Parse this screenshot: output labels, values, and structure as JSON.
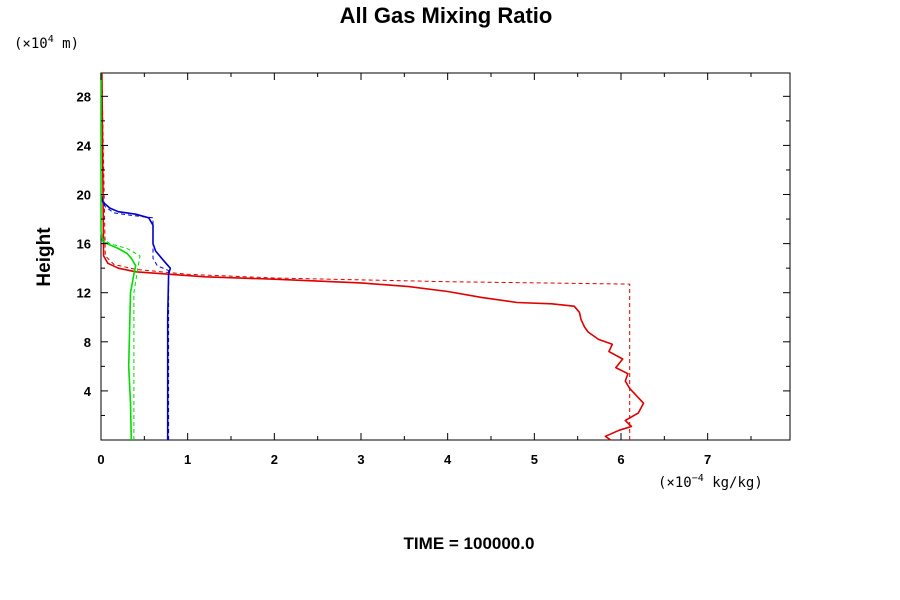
{
  "chart_data": {
    "type": "line",
    "title": "All Gas Mixing Ratio",
    "ylabel": "Height",
    "y_unit_prefix": "(×10",
    "y_unit_exp": "4",
    "y_unit_suffix": " m)",
    "x_unit_prefix": "(×10",
    "x_unit_exp": "−4",
    "x_unit_suffix": " kg/kg)",
    "footer": "TIME = 100000.0",
    "xlim": [
      0,
      7.95
    ],
    "ylim": [
      0,
      29.9
    ],
    "x_ticks": [
      0,
      1,
      2,
      3,
      4,
      5,
      6,
      7
    ],
    "y_ticks": [
      4,
      8,
      12,
      16,
      20,
      24,
      28
    ],
    "grid": false,
    "colors": {
      "red": "#e00000",
      "blue": "#0000cc",
      "green": "#00dd00",
      "axis": "#000000"
    },
    "series": [
      {
        "color": "#e00000",
        "style": "solid",
        "points": [
          [
            5.88,
            0
          ],
          [
            5.82,
            0.3
          ],
          [
            5.98,
            0.8
          ],
          [
            6.12,
            1.1
          ],
          [
            6.05,
            1.6
          ],
          [
            6.2,
            2.2
          ],
          [
            6.26,
            3.0
          ],
          [
            6.18,
            3.6
          ],
          [
            6.1,
            4.2
          ],
          [
            6.05,
            4.8
          ],
          [
            6.08,
            5.4
          ],
          [
            5.94,
            5.9
          ],
          [
            6.02,
            6.6
          ],
          [
            5.86,
            7.2
          ],
          [
            5.9,
            7.8
          ],
          [
            5.74,
            8.2
          ],
          [
            5.62,
            8.8
          ],
          [
            5.58,
            9.2
          ],
          [
            5.54,
            9.8
          ],
          [
            5.52,
            10.4
          ],
          [
            5.46,
            10.9
          ],
          [
            5.2,
            11.1
          ],
          [
            4.8,
            11.2
          ],
          [
            4.4,
            11.6
          ],
          [
            4.0,
            12.1
          ],
          [
            3.55,
            12.5
          ],
          [
            3.0,
            12.8
          ],
          [
            2.0,
            13.1
          ],
          [
            1.2,
            13.3
          ],
          [
            0.8,
            13.5
          ],
          [
            0.4,
            13.7
          ],
          [
            0.2,
            14.0
          ],
          [
            0.08,
            14.4
          ],
          [
            0.03,
            15.0
          ],
          [
            0.01,
            29.9
          ]
        ]
      },
      {
        "color": "#e00000",
        "style": "dashed",
        "points": [
          [
            6.1,
            0
          ],
          [
            6.1,
            12.7
          ],
          [
            4.0,
            12.9
          ],
          [
            2.0,
            13.2
          ],
          [
            1.0,
            13.5
          ],
          [
            0.4,
            13.9
          ],
          [
            0.15,
            14.3
          ],
          [
            0.05,
            15.0
          ],
          [
            0.01,
            29.9
          ]
        ]
      },
      {
        "color": "#0000cc",
        "style": "solid",
        "points": [
          [
            0.77,
            0
          ],
          [
            0.77,
            10.0
          ],
          [
            0.78,
            13.5
          ],
          [
            0.8,
            14.0
          ],
          [
            0.75,
            14.4
          ],
          [
            0.7,
            14.8
          ],
          [
            0.63,
            15.4
          ],
          [
            0.6,
            16.0
          ],
          [
            0.6,
            17.5
          ],
          [
            0.55,
            18.1
          ],
          [
            0.4,
            18.4
          ],
          [
            0.2,
            18.6
          ],
          [
            0.1,
            18.9
          ],
          [
            0.02,
            19.4
          ],
          [
            0.0,
            20.0
          ]
        ]
      },
      {
        "color": "#0000cc",
        "style": "dashed",
        "points": [
          [
            0.78,
            0
          ],
          [
            0.78,
            13.8
          ],
          [
            0.65,
            14.2
          ],
          [
            0.6,
            14.8
          ],
          [
            0.6,
            18.1
          ],
          [
            0.35,
            18.3
          ],
          [
            0.15,
            18.5
          ],
          [
            0.05,
            19.0
          ],
          [
            0.0,
            19.6
          ]
        ]
      },
      {
        "color": "#00dd00",
        "style": "solid",
        "points": [
          [
            0.35,
            0
          ],
          [
            0.34,
            3.0
          ],
          [
            0.32,
            6.0
          ],
          [
            0.33,
            9.0
          ],
          [
            0.34,
            12.0
          ],
          [
            0.38,
            13.5
          ],
          [
            0.4,
            14.2
          ],
          [
            0.35,
            14.8
          ],
          [
            0.3,
            15.2
          ],
          [
            0.2,
            15.6
          ],
          [
            0.1,
            15.9
          ],
          [
            0.02,
            16.2
          ],
          [
            0.0,
            17.0
          ],
          [
            0.0,
            29.9
          ]
        ]
      },
      {
        "color": "#00dd00",
        "style": "dashed",
        "points": [
          [
            0.38,
            0
          ],
          [
            0.38,
            12.0
          ],
          [
            0.42,
            13.8
          ],
          [
            0.45,
            15.0
          ],
          [
            0.3,
            15.6
          ],
          [
            0.1,
            16.0
          ],
          [
            0.0,
            16.5
          ]
        ]
      }
    ]
  }
}
